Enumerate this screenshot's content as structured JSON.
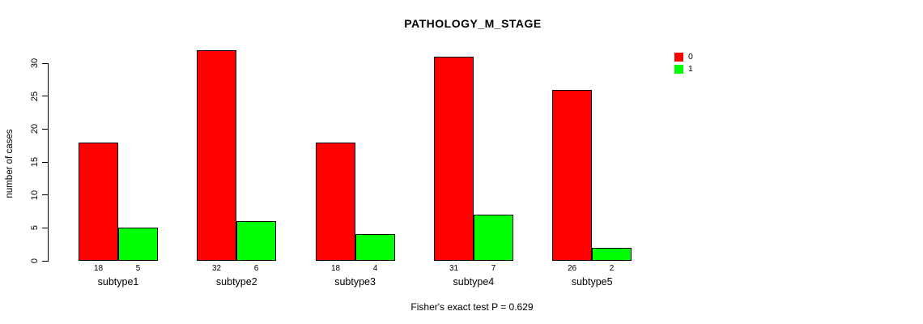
{
  "title": "PATHOLOGY_M_STAGE",
  "footer": "Fisher's exact test P = 0.629",
  "legend": {
    "items": [
      {
        "label": "0",
        "color": "#ff0000"
      },
      {
        "label": "1",
        "color": "#00ff00"
      }
    ]
  },
  "chart_data": {
    "type": "bar",
    "title": "PATHOLOGY_M_STAGE",
    "xlabel": "",
    "ylabel": "number of cases",
    "categories": [
      "subtype1",
      "subtype2",
      "subtype3",
      "subtype4",
      "subtype5"
    ],
    "series": [
      {
        "name": "0",
        "color": "#ff0000",
        "values": [
          18,
          32,
          18,
          31,
          26
        ]
      },
      {
        "name": "1",
        "color": "#00ff00",
        "values": [
          5,
          6,
          4,
          7,
          2
        ]
      }
    ],
    "bar_count_labels": [
      [
        "18",
        "5"
      ],
      [
        "32",
        "6"
      ],
      [
        "18",
        "4"
      ],
      [
        "31",
        "7"
      ],
      [
        "26",
        "2"
      ]
    ],
    "yticks": [
      0,
      5,
      10,
      15,
      20,
      25,
      30
    ],
    "ylim": [
      0,
      30
    ],
    "grid": false,
    "legend_position": "top-right",
    "annotation": "Fisher's exact test P = 0.629"
  }
}
